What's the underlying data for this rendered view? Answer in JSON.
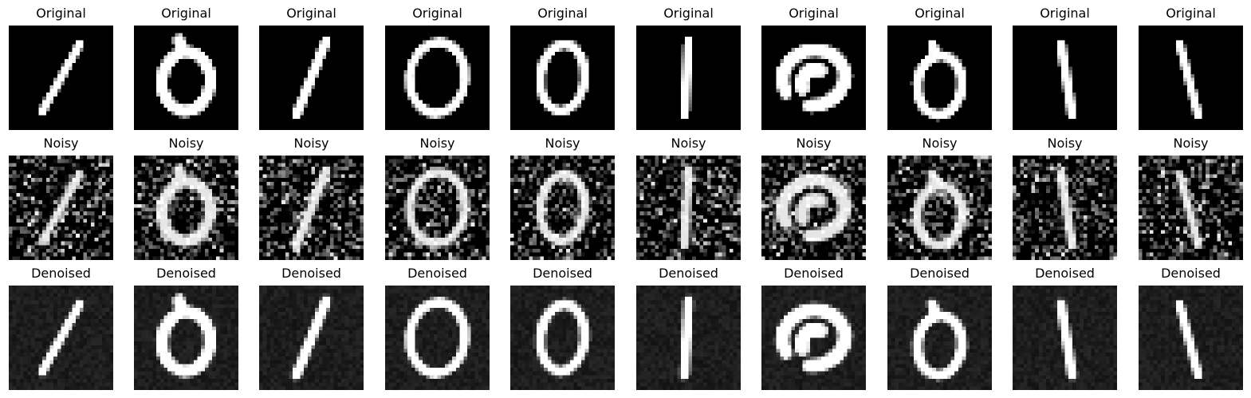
{
  "figure": {
    "rows": [
      {
        "kind": "original",
        "title": "Original",
        "digits": [
          1,
          0,
          1,
          0,
          0,
          1,
          0,
          0,
          1,
          1
        ]
      },
      {
        "kind": "noisy",
        "title": "Noisy",
        "digits": [
          1,
          0,
          1,
          0,
          0,
          1,
          0,
          0,
          1,
          1
        ]
      },
      {
        "kind": "denoised",
        "title": "Denoised",
        "digits": [
          1,
          0,
          1,
          0,
          0,
          1,
          0,
          0,
          1,
          1
        ]
      }
    ],
    "background_color": "#ffffff",
    "image_bg": "#000000",
    "image_fg": "#ffffff"
  }
}
